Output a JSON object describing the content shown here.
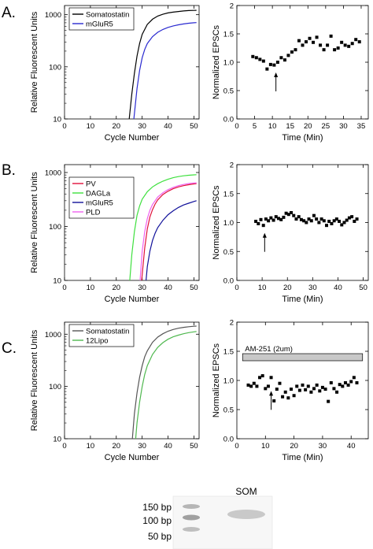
{
  "colors": {
    "black": "#000000",
    "blue": "#2a2ad0",
    "red": "#e0103a",
    "green": "#3ee03e",
    "navy": "#10109a",
    "pink": "#f060f0",
    "gray": "#555555",
    "lightgreen": "#4fb84f",
    "bar_fill": "#c8c8c8"
  },
  "panels": [
    {
      "label": "A."
    },
    {
      "label": "B."
    },
    {
      "label": "C."
    }
  ],
  "chart_data": [
    {
      "id": "A-qpcr",
      "type": "line",
      "xlabel": "Cycle Number",
      "ylabel": "Relative Fluorescent Units",
      "xlim": [
        0,
        52
      ],
      "xticks": [
        0,
        10,
        20,
        30,
        40,
        50
      ],
      "ylim": [
        10,
        1500
      ],
      "yscale": "log",
      "yticks": [
        10,
        100,
        1000
      ],
      "legend": "top-left",
      "series": [
        {
          "name": "Somatostatin",
          "color_key": "black",
          "x": [
            25,
            26,
            27,
            28,
            29,
            30,
            32,
            34,
            36,
            38,
            40,
            42,
            44,
            46,
            48,
            50,
            51
          ],
          "y": [
            10,
            30,
            75,
            160,
            280,
            420,
            650,
            820,
            940,
            1020,
            1080,
            1120,
            1150,
            1180,
            1200,
            1210,
            1215
          ]
        },
        {
          "name": "mGluR5",
          "color_key": "blue",
          "x": [
            26.8,
            28,
            29,
            30,
            31,
            32,
            34,
            36,
            38,
            40,
            42,
            44,
            46,
            48,
            50,
            51
          ],
          "y": [
            10,
            38,
            85,
            150,
            215,
            280,
            380,
            460,
            520,
            570,
            610,
            640,
            665,
            685,
            700,
            705
          ]
        }
      ]
    },
    {
      "id": "A-epsc",
      "type": "scatter",
      "xlabel": "Time (Min)",
      "ylabel": "Normalized EPSCs",
      "xlim": [
        0,
        37
      ],
      "xticks": [
        0,
        5,
        10,
        15,
        20,
        25,
        30,
        35
      ],
      "ylim": [
        0,
        2.0
      ],
      "yticks": [
        0.0,
        0.5,
        1.0,
        1.5,
        2.0
      ],
      "arrow_x": 11,
      "x": [
        4.5,
        5.5,
        6.5,
        7.5,
        8.5,
        9.5,
        10.5,
        11.5,
        12.5,
        13.5,
        14.5,
        15.5,
        16.5,
        17.5,
        18.5,
        19.5,
        20.5,
        21.5,
        22.5,
        23.5,
        24.5,
        25.5,
        26.5,
        27.5,
        28.5,
        29.5,
        30.5,
        31.5,
        32.5,
        33.5,
        34.5
      ],
      "y": [
        1.1,
        1.08,
        1.05,
        1.02,
        0.88,
        0.96,
        0.95,
        1.0,
        1.08,
        1.04,
        1.12,
        1.18,
        1.22,
        1.38,
        1.3,
        1.36,
        1.42,
        1.35,
        1.44,
        1.3,
        1.22,
        1.3,
        1.46,
        1.22,
        1.25,
        1.35,
        1.3,
        1.28,
        1.33,
        1.4,
        1.36
      ]
    },
    {
      "id": "B-qpcr",
      "type": "line",
      "xlabel": "Cycle Number",
      "ylabel": "Relative Fluorescent Units",
      "xlim": [
        0,
        52
      ],
      "xticks": [
        0,
        10,
        20,
        30,
        40,
        50
      ],
      "ylim": [
        10,
        1400
      ],
      "yscale": "log",
      "yticks": [
        10,
        100,
        1000
      ],
      "legend": "left",
      "series": [
        {
          "name": "PV",
          "color_key": "red",
          "x": [
            29.8,
            31,
            32,
            33,
            34,
            35,
            36,
            38,
            40,
            42,
            44,
            46,
            48,
            50,
            51
          ],
          "y": [
            10,
            40,
            90,
            150,
            205,
            260,
            310,
            390,
            450,
            500,
            540,
            570,
            595,
            615,
            620
          ]
        },
        {
          "name": "DAGLa",
          "color_key": "green",
          "x": [
            25.2,
            26,
            27,
            28,
            29,
            30,
            32,
            34,
            36,
            38,
            40,
            42,
            44,
            46,
            48,
            50,
            51
          ],
          "y": [
            10,
            30,
            80,
            160,
            240,
            320,
            440,
            540,
            620,
            690,
            750,
            800,
            840,
            870,
            890,
            905,
            910
          ]
        },
        {
          "name": "mGluR5",
          "color_key": "navy",
          "x": [
            31.5,
            32,
            33,
            34,
            35,
            36,
            38,
            40,
            42,
            44,
            46,
            48,
            50,
            51
          ],
          "y": [
            10,
            18,
            35,
            55,
            75,
            95,
            130,
            165,
            195,
            225,
            250,
            270,
            290,
            300
          ]
        },
        {
          "name": "PLD",
          "color_key": "pink",
          "x": [
            29.2,
            30,
            31,
            32,
            33,
            34,
            36,
            38,
            40,
            42,
            44,
            46,
            48,
            50,
            51
          ],
          "y": [
            10,
            35,
            80,
            140,
            200,
            255,
            350,
            420,
            480,
            530,
            570,
            600,
            625,
            640,
            645
          ]
        }
      ]
    },
    {
      "id": "B-epsc",
      "type": "scatter",
      "xlabel": "Time (Min)",
      "ylabel": "Normalized EPSCs",
      "xlim": [
        0,
        52
      ],
      "xticks": [
        0,
        10,
        20,
        30,
        40,
        50
      ],
      "ylim": [
        0,
        2.0
      ],
      "yticks": [
        0.0,
        0.5,
        1.0,
        1.5,
        2.0
      ],
      "arrow_x": 11,
      "x": [
        7.5,
        8.5,
        9.5,
        10.5,
        11.5,
        12.5,
        13.5,
        14.5,
        15.5,
        16.5,
        17.5,
        18.5,
        19.5,
        20.5,
        21.5,
        22.5,
        23.5,
        24.5,
        25.5,
        26.5,
        27.5,
        28.5,
        29.5,
        30.5,
        31.5,
        32.5,
        33.5,
        34.5,
        35.5,
        36.5,
        37.5,
        38.5,
        39.5,
        40.5,
        41.5,
        42.5,
        43.5,
        44.5,
        45.5,
        46.5,
        47.5
      ],
      "y": [
        1.02,
        0.98,
        1.05,
        0.95,
        1.06,
        1.03,
        1.08,
        1.04,
        1.1,
        1.07,
        1.05,
        1.09,
        1.16,
        1.14,
        1.17,
        1.12,
        1.06,
        1.1,
        1.05,
        1.03,
        1.0,
        1.06,
        1.03,
        1.12,
        1.06,
        1.0,
        1.06,
        1.03,
        0.95,
        1.02,
        0.98,
        1.03,
        1.06,
        1.02,
        0.96,
        1.0,
        1.04,
        1.08,
        1.1,
        1.02,
        1.06
      ]
    },
    {
      "id": "C-qpcr",
      "type": "line",
      "xlabel": "Cycle Number",
      "ylabel": "Relative Fluorescent Units",
      "xlim": [
        0,
        52
      ],
      "xticks": [
        0,
        10,
        20,
        30,
        40,
        50
      ],
      "ylim": [
        10,
        1700
      ],
      "yscale": "log",
      "yticks": [
        10,
        100,
        1000
      ],
      "legend": "top-left",
      "series": [
        {
          "name": "Somatostatin",
          "color_key": "gray",
          "x": [
            26.2,
            27,
            28,
            29,
            30,
            31,
            32,
            34,
            36,
            38,
            40,
            42,
            44,
            46,
            48,
            50,
            51
          ],
          "y": [
            10,
            30,
            75,
            150,
            250,
            370,
            480,
            700,
            880,
            1020,
            1140,
            1230,
            1300,
            1350,
            1390,
            1420,
            1430
          ]
        },
        {
          "name": "12Lipo",
          "color_key": "lightgreen",
          "x": [
            27.5,
            28,
            29,
            30,
            31,
            32,
            34,
            36,
            38,
            40,
            42,
            44,
            46,
            48,
            50,
            51
          ],
          "y": [
            10,
            20,
            50,
            100,
            170,
            250,
            410,
            560,
            690,
            800,
            890,
            960,
            1020,
            1070,
            1110,
            1125
          ]
        }
      ]
    },
    {
      "id": "C-epsc",
      "type": "scatter",
      "xlabel": "Time (Min)",
      "ylabel": "Normalized EPSCs",
      "xlim": [
        0,
        46
      ],
      "xticks": [
        0,
        10,
        20,
        30,
        40
      ],
      "ylim": [
        0,
        2.0
      ],
      "yticks": [
        0.0,
        0.5,
        1.0,
        1.5,
        2.0
      ],
      "arrow_x": 12,
      "bar_label": "AM-251 (2um)",
      "bar_range": [
        2,
        44
      ],
      "x": [
        4,
        5,
        6,
        7,
        8,
        9,
        10,
        11,
        12,
        13,
        14,
        15,
        16,
        17,
        18,
        19,
        20,
        21,
        22,
        23,
        24,
        25,
        26,
        27,
        28,
        29,
        30,
        31,
        32,
        33,
        34,
        35,
        36,
        37,
        38,
        39,
        40,
        41,
        42
      ],
      "y": [
        0.92,
        0.9,
        0.95,
        0.9,
        1.05,
        1.08,
        0.86,
        0.9,
        1.05,
        0.65,
        0.85,
        0.95,
        0.72,
        0.8,
        0.7,
        0.85,
        0.74,
        0.9,
        0.83,
        0.92,
        0.84,
        0.9,
        0.8,
        0.86,
        0.92,
        0.82,
        0.88,
        0.85,
        0.64,
        0.96,
        0.86,
        0.8,
        0.93,
        0.9,
        0.96,
        0.92,
        0.98,
        1.05,
        0.96
      ]
    }
  ],
  "gel": {
    "title": "SOM",
    "ladder_labels": [
      "150 bp",
      "100 bp",
      "50 bp"
    ]
  }
}
